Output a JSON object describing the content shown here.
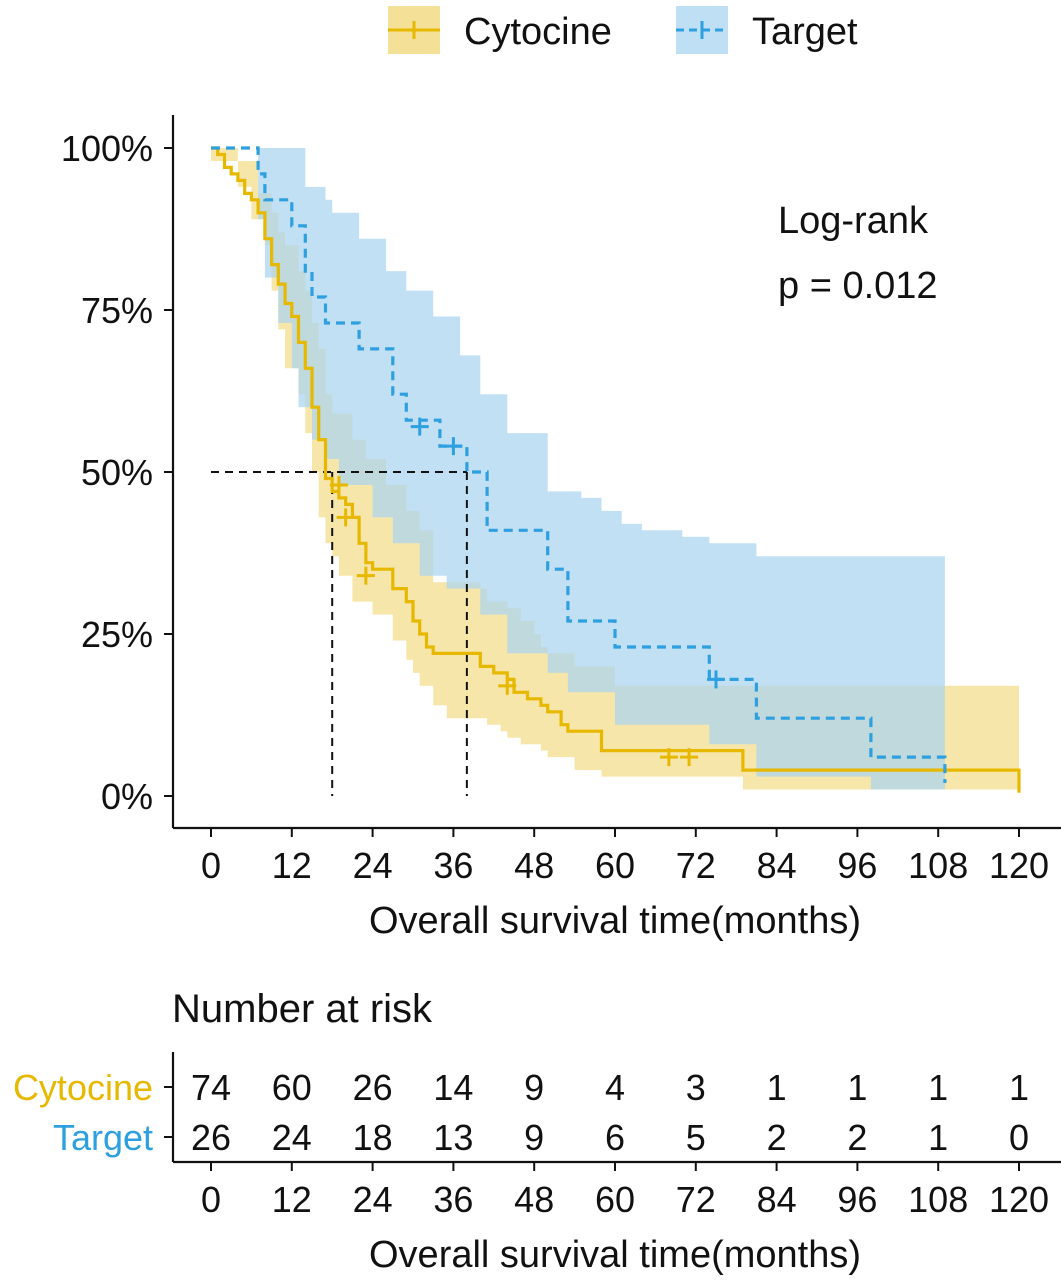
{
  "chart_data": {
    "type": "line",
    "subtype": "kaplan-meier",
    "title": "",
    "xlabel": "Overall survival time(months)",
    "ylabel": "",
    "xlim": [
      0,
      120
    ],
    "ylim": [
      0,
      1
    ],
    "x_ticks": [
      0,
      12,
      24,
      36,
      48,
      60,
      72,
      84,
      96,
      108,
      120
    ],
    "x_tick_labels": [
      "0",
      "12",
      "24",
      "36",
      "48",
      "60",
      "72",
      "84",
      "96",
      "108",
      "120"
    ],
    "y_ticks": [
      0,
      0.25,
      0.5,
      0.75,
      1
    ],
    "y_tick_labels": [
      "0%",
      "25%",
      "50%",
      "75%",
      "100%"
    ],
    "grid": false,
    "legend_position": "top",
    "annotation": {
      "line1": "Log-rank",
      "line2": "p = 0.012"
    },
    "median_lines": {
      "y": 0.5,
      "x": [
        18,
        38
      ]
    },
    "series": [
      {
        "name": "Cytocine",
        "color": "#E7B800",
        "fill": "#F2D675",
        "linestyle": "solid",
        "steps": [
          [
            0,
            1.0
          ],
          [
            1,
            0.99
          ],
          [
            2,
            0.97
          ],
          [
            3,
            0.96
          ],
          [
            4,
            0.95
          ],
          [
            5,
            0.93
          ],
          [
            6,
            0.92
          ],
          [
            7,
            0.9
          ],
          [
            8,
            0.86
          ],
          [
            9,
            0.82
          ],
          [
            10,
            0.79
          ],
          [
            11,
            0.76
          ],
          [
            12,
            0.74
          ],
          [
            13,
            0.7
          ],
          [
            14,
            0.66
          ],
          [
            15,
            0.6
          ],
          [
            16,
            0.55
          ],
          [
            17,
            0.49
          ],
          [
            18,
            0.47
          ],
          [
            19,
            0.46
          ],
          [
            20,
            0.45
          ],
          [
            21,
            0.43
          ],
          [
            22,
            0.39
          ],
          [
            23,
            0.36
          ],
          [
            24,
            0.35
          ],
          [
            27,
            0.32
          ],
          [
            29,
            0.3
          ],
          [
            30,
            0.27
          ],
          [
            31,
            0.25
          ],
          [
            32,
            0.23
          ],
          [
            33,
            0.22
          ],
          [
            40,
            0.2
          ],
          [
            42,
            0.19
          ],
          [
            44,
            0.18
          ],
          [
            45,
            0.16
          ],
          [
            47,
            0.15
          ],
          [
            49,
            0.14
          ],
          [
            50,
            0.13
          ],
          [
            52,
            0.11
          ],
          [
            53,
            0.1
          ],
          [
            58,
            0.07
          ],
          [
            73,
            0.07
          ],
          [
            79,
            0.04
          ],
          [
            120,
            0.04
          ],
          [
            120,
            0.005
          ]
        ],
        "ci_upper": [
          [
            0,
            1.0
          ],
          [
            4,
            0.98
          ],
          [
            7,
            0.93
          ],
          [
            9,
            0.9
          ],
          [
            10,
            0.87
          ],
          [
            11,
            0.85
          ],
          [
            13,
            0.81
          ],
          [
            14,
            0.78
          ],
          [
            15,
            0.73
          ],
          [
            16,
            0.69
          ],
          [
            17,
            0.62
          ],
          [
            18,
            0.59
          ],
          [
            21,
            0.55
          ],
          [
            23,
            0.52
          ],
          [
            26,
            0.48
          ],
          [
            29,
            0.44
          ],
          [
            31,
            0.41
          ],
          [
            33,
            0.33
          ],
          [
            40,
            0.32
          ],
          [
            41,
            0.3
          ],
          [
            44,
            0.29
          ],
          [
            46,
            0.27
          ],
          [
            48,
            0.25
          ],
          [
            49,
            0.23
          ],
          [
            50,
            0.22
          ],
          [
            54,
            0.2
          ],
          [
            60,
            0.17
          ],
          [
            73,
            0.17
          ],
          [
            120,
            0.17
          ]
        ],
        "ci_lower": [
          [
            0,
            0.98
          ],
          [
            4,
            0.94
          ],
          [
            6,
            0.89
          ],
          [
            8,
            0.85
          ],
          [
            9,
            0.78
          ],
          [
            10,
            0.72
          ],
          [
            11,
            0.66
          ],
          [
            13,
            0.62
          ],
          [
            14,
            0.56
          ],
          [
            15,
            0.5
          ],
          [
            16,
            0.43
          ],
          [
            17,
            0.39
          ],
          [
            18,
            0.37
          ],
          [
            19,
            0.34
          ],
          [
            21,
            0.3
          ],
          [
            24,
            0.28
          ],
          [
            27,
            0.24
          ],
          [
            29,
            0.21
          ],
          [
            30,
            0.19
          ],
          [
            31,
            0.17
          ],
          [
            33,
            0.14
          ],
          [
            35,
            0.12
          ],
          [
            41,
            0.11
          ],
          [
            43,
            0.1
          ],
          [
            44,
            0.09
          ],
          [
            46,
            0.08
          ],
          [
            49,
            0.07
          ],
          [
            50,
            0.06
          ],
          [
            54,
            0.04
          ],
          [
            58,
            0.03
          ],
          [
            79,
            0.01
          ],
          [
            120,
            0.01
          ]
        ],
        "censors": [
          [
            19,
            0.48
          ],
          [
            20,
            0.43
          ],
          [
            23,
            0.34
          ],
          [
            44,
            0.17
          ],
          [
            68,
            0.06
          ],
          [
            71,
            0.06
          ]
        ]
      },
      {
        "name": "Target",
        "color": "#2E9FDF",
        "fill": "#A9D4F0",
        "linestyle": "dashed",
        "steps": [
          [
            0,
            1.0
          ],
          [
            7,
            0.96
          ],
          [
            8,
            0.92
          ],
          [
            12,
            0.88
          ],
          [
            14,
            0.81
          ],
          [
            15,
            0.77
          ],
          [
            17,
            0.73
          ],
          [
            22,
            0.69
          ],
          [
            27,
            0.62
          ],
          [
            29,
            0.58
          ],
          [
            34,
            0.54
          ],
          [
            38,
            0.5
          ],
          [
            41,
            0.41
          ],
          [
            50,
            0.35
          ],
          [
            53,
            0.27
          ],
          [
            60,
            0.23
          ],
          [
            74,
            0.18
          ],
          [
            81,
            0.12
          ],
          [
            98,
            0.06
          ],
          [
            109,
            0.02
          ]
        ],
        "ci_upper": [
          [
            0,
            1.0
          ],
          [
            14,
            0.94
          ],
          [
            17,
            0.92
          ],
          [
            18,
            0.9
          ],
          [
            22,
            0.86
          ],
          [
            26,
            0.81
          ],
          [
            29,
            0.78
          ],
          [
            33,
            0.74
          ],
          [
            37,
            0.68
          ],
          [
            40,
            0.62
          ],
          [
            44,
            0.56
          ],
          [
            50,
            0.47
          ],
          [
            55,
            0.46
          ],
          [
            58,
            0.44
          ],
          [
            61,
            0.42
          ],
          [
            64,
            0.41
          ],
          [
            70,
            0.4
          ],
          [
            74,
            0.39
          ],
          [
            81,
            0.37
          ],
          [
            97,
            0.37
          ],
          [
            109,
            0.37
          ],
          [
            109,
            0.17
          ]
        ],
        "ci_lower": [
          [
            0,
            1.0
          ],
          [
            7,
            0.89
          ],
          [
            8,
            0.8
          ],
          [
            10,
            0.73
          ],
          [
            12,
            0.66
          ],
          [
            13,
            0.6
          ],
          [
            15,
            0.55
          ],
          [
            17,
            0.52
          ],
          [
            19,
            0.48
          ],
          [
            24,
            0.43
          ],
          [
            27,
            0.39
          ],
          [
            31,
            0.34
          ],
          [
            35,
            0.32
          ],
          [
            40,
            0.28
          ],
          [
            44,
            0.22
          ],
          [
            50,
            0.19
          ],
          [
            53,
            0.16
          ],
          [
            60,
            0.11
          ],
          [
            74,
            0.08
          ],
          [
            81,
            0.03
          ],
          [
            98,
            0.01
          ],
          [
            109,
            0.01
          ]
        ],
        "censors": [
          [
            31,
            0.57
          ],
          [
            36,
            0.54
          ],
          [
            75,
            0.18
          ]
        ]
      }
    ],
    "risk_table": {
      "title": "Number at risk",
      "xlabel": "Overall survival time(months)",
      "times": [
        0,
        12,
        24,
        36,
        48,
        60,
        72,
        84,
        96,
        108,
        120
      ],
      "rows": [
        {
          "name": "Cytocine",
          "values": [
            74,
            60,
            26,
            14,
            9,
            4,
            3,
            1,
            1,
            1,
            1
          ]
        },
        {
          "name": "Target",
          "values": [
            26,
            24,
            18,
            13,
            9,
            6,
            5,
            2,
            2,
            1,
            0
          ]
        }
      ]
    }
  }
}
